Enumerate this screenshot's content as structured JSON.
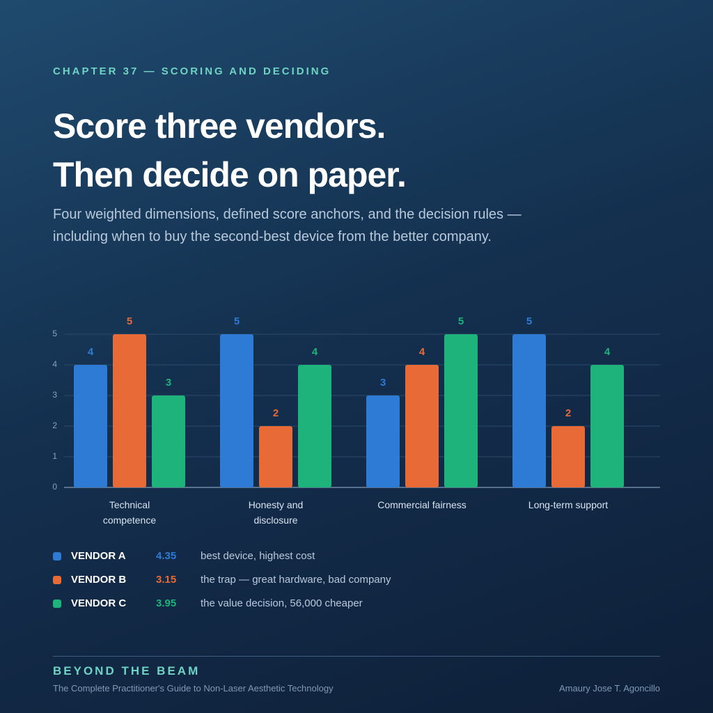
{
  "chapter": "CHAPTER 37 — SCORING AND DECIDING",
  "headline": [
    "Score three vendors.",
    "Then decide on paper."
  ],
  "intro": "Four weighted dimensions, defined score anchors, and the decision rules — including when to buy the second-best device from the better company.",
  "chart_data": {
    "type": "bar",
    "categories": [
      "Technical competence",
      "Honesty and disclosure",
      "Commercial fairness",
      "Long-term support"
    ],
    "series": [
      {
        "name": "VENDOR A",
        "color": "#2e7bd6",
        "values": [
          4,
          5,
          3,
          5
        ],
        "score": 4.35,
        "note": "best device, highest cost"
      },
      {
        "name": "VENDOR B",
        "color": "#e86a36",
        "values": [
          5,
          2,
          4,
          2
        ],
        "score": 3.15,
        "note": "the trap — great hardware, bad company"
      },
      {
        "name": "VENDOR C",
        "color": "#1db37a",
        "values": [
          3,
          4,
          5,
          4
        ],
        "score": 3.95,
        "note": "the value decision, 56,000 cheaper"
      }
    ],
    "ylim": [
      0,
      5
    ],
    "yticks": [
      0,
      1,
      2,
      3,
      4,
      5
    ],
    "grid": true
  },
  "footer": {
    "brand": "BEYOND THE BEAM",
    "subtitle": "The Complete Practitioner's Guide to Non-Laser Aesthetic Technology",
    "author": "Amaury Jose T. Agoncillo"
  }
}
